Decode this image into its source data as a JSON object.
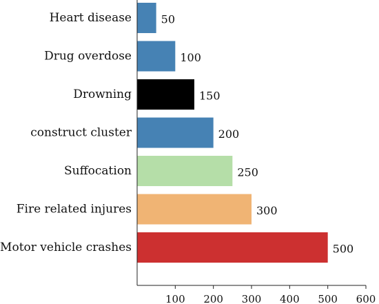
{
  "chart_data": {
    "type": "bar",
    "orientation": "horizontal",
    "title": "",
    "xlabel": "",
    "ylabel": "",
    "categories": [
      "Heart disease",
      "Drug overdose",
      "Drowning",
      "construct cluster",
      "Suffocation",
      "Fire related injures",
      "Motor vehicle crashes"
    ],
    "values": [
      50,
      100,
      150,
      200,
      250,
      300,
      500
    ],
    "value_labels": [
      "50",
      "100",
      "150",
      "200",
      "250",
      "300",
      "500"
    ],
    "colors": [
      "#4682b4",
      "#4682b4",
      "#000000",
      "#4682b4",
      "#b5dea8",
      "#f0b474",
      "#cc3030"
    ],
    "xlim": [
      0,
      600
    ],
    "xticks": [
      100,
      200,
      300,
      400,
      500,
      600
    ],
    "xtick_labels": [
      "100",
      "200",
      "300",
      "400",
      "500",
      "600"
    ],
    "grid": false,
    "legend": "none"
  }
}
